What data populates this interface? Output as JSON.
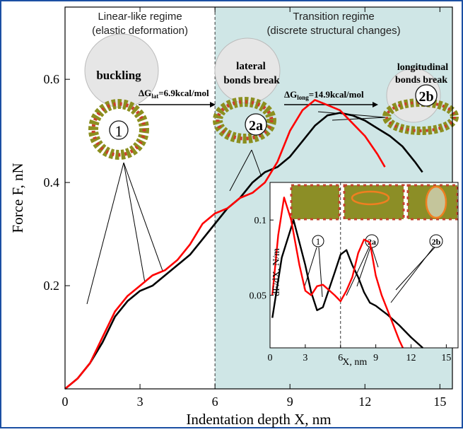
{
  "chart_data": [
    {
      "type": "line",
      "xlabel": "Indentation depth X, nm",
      "ylabel": "Force F, nN",
      "xlim": [
        0,
        15.5
      ],
      "ylim": [
        0,
        0.74
      ],
      "x_ticks": [
        0,
        3,
        6,
        9,
        12,
        15
      ],
      "y_ticks": [
        0.2,
        0.4,
        0.6
      ],
      "regions": [
        {
          "label_line1": "Linear-like regime",
          "label_line2": "(elastic deformation)",
          "x_range": [
            0,
            6
          ],
          "color": "#ffffff"
        },
        {
          "label_line1": "Transition regime",
          "label_line2": "(discrete structural changes)",
          "x_range": [
            6,
            15.5
          ],
          "color": "#cfe6e6"
        }
      ],
      "divider_x": 6,
      "series": [
        {
          "color": "#000000",
          "points": [
            [
              0,
              0
            ],
            [
              0.5,
              0.02
            ],
            [
              1,
              0.05
            ],
            [
              1.5,
              0.09
            ],
            [
              2,
              0.14
            ],
            [
              2.5,
              0.17
            ],
            [
              3,
              0.19
            ],
            [
              3.5,
              0.2
            ],
            [
              4,
              0.22
            ],
            [
              4.5,
              0.24
            ],
            [
              5,
              0.26
            ],
            [
              5.5,
              0.29
            ],
            [
              6,
              0.32
            ],
            [
              6.5,
              0.35
            ],
            [
              7,
              0.37
            ],
            [
              7.5,
              0.4
            ],
            [
              8,
              0.42
            ],
            [
              8.5,
              0.43
            ],
            [
              9,
              0.45
            ],
            [
              9.5,
              0.48
            ],
            [
              10,
              0.51
            ],
            [
              10.5,
              0.53
            ],
            [
              11,
              0.535
            ],
            [
              11.5,
              0.53
            ],
            [
              12,
              0.52
            ],
            [
              12.5,
              0.505
            ],
            [
              13,
              0.49
            ],
            [
              13.5,
              0.47
            ],
            [
              14,
              0.44
            ],
            [
              14.3,
              0.42
            ]
          ]
        },
        {
          "color": "#ff0000",
          "points": [
            [
              0,
              0
            ],
            [
              0.5,
              0.02
            ],
            [
              1,
              0.05
            ],
            [
              1.5,
              0.1
            ],
            [
              2,
              0.15
            ],
            [
              2.5,
              0.18
            ],
            [
              3,
              0.2
            ],
            [
              3.5,
              0.22
            ],
            [
              4,
              0.23
            ],
            [
              4.5,
              0.25
            ],
            [
              5,
              0.28
            ],
            [
              5.5,
              0.32
            ],
            [
              6,
              0.34
            ],
            [
              6.5,
              0.35
            ],
            [
              7,
              0.37
            ],
            [
              7.5,
              0.38
            ],
            [
              8,
              0.4
            ],
            [
              8.5,
              0.44
            ],
            [
              9,
              0.5
            ],
            [
              9.5,
              0.54
            ],
            [
              10,
              0.56
            ],
            [
              10.5,
              0.55
            ],
            [
              11,
              0.54
            ],
            [
              11.5,
              0.515
            ],
            [
              12,
              0.49
            ],
            [
              12.5,
              0.455
            ],
            [
              12.8,
              0.43
            ]
          ]
        }
      ],
      "annotations": [
        {
          "text": "buckling"
        },
        {
          "text": "lateral"
        },
        {
          "text": "bonds break"
        },
        {
          "text": "longitudinal"
        },
        {
          "text": "bonds break"
        },
        {
          "text": "ΔG",
          "sub": "lat",
          "value": "=6.9kcal/mol"
        },
        {
          "text": "ΔG",
          "sub": "long",
          "value": "=14.9kcal/mol"
        },
        {
          "text": "1"
        },
        {
          "text": "2a"
        },
        {
          "text": "2b"
        }
      ]
    },
    {
      "type": "line",
      "xlabel": "X, nm",
      "ylabel": "dF/dX, N/m",
      "xlim": [
        0,
        16
      ],
      "ylim": [
        0.015,
        0.125
      ],
      "x_ticks": [
        0,
        3,
        6,
        9,
        12,
        15
      ],
      "y_ticks": [
        0.05,
        0.1
      ],
      "divider_x": 6,
      "series": [
        {
          "color": "#000000",
          "points": [
            [
              0.2,
              0.035
            ],
            [
              1,
              0.075
            ],
            [
              2,
              0.1
            ],
            [
              3,
              0.07
            ],
            [
              3.5,
              0.052
            ],
            [
              4,
              0.04
            ],
            [
              4.5,
              0.042
            ],
            [
              5.5,
              0.065
            ],
            [
              6,
              0.077
            ],
            [
              6.5,
              0.08
            ],
            [
              7,
              0.07
            ],
            [
              7.5,
              0.062
            ],
            [
              8,
              0.052
            ],
            [
              8.5,
              0.045
            ],
            [
              9,
              0.043
            ],
            [
              9.5,
              0.04
            ],
            [
              10,
              0.037
            ],
            [
              11,
              0.03
            ],
            [
              12,
              0.022
            ],
            [
              13,
              0.015
            ]
          ]
        },
        {
          "color": "#ff0000",
          "points": [
            [
              0.2,
              0.05
            ],
            [
              0.7,
              0.09
            ],
            [
              1.2,
              0.115
            ],
            [
              1.8,
              0.1
            ],
            [
              2.5,
              0.07
            ],
            [
              3,
              0.053
            ],
            [
              3.5,
              0.05
            ],
            [
              4,
              0.056
            ],
            [
              4.5,
              0.057
            ],
            [
              5.5,
              0.05
            ],
            [
              6,
              0.046
            ],
            [
              6.5,
              0.053
            ],
            [
              7,
              0.062
            ],
            [
              7.5,
              0.078
            ],
            [
              8,
              0.087
            ],
            [
              8.5,
              0.085
            ],
            [
              9,
              0.063
            ],
            [
              9.5,
              0.05
            ],
            [
              10,
              0.04
            ],
            [
              10.5,
              0.03
            ],
            [
              11,
              0.02
            ],
            [
              11.3,
              0.015
            ]
          ]
        }
      ],
      "annotations": [
        {
          "text": "1"
        },
        {
          "text": "2a"
        },
        {
          "text": "2b"
        }
      ]
    }
  ]
}
